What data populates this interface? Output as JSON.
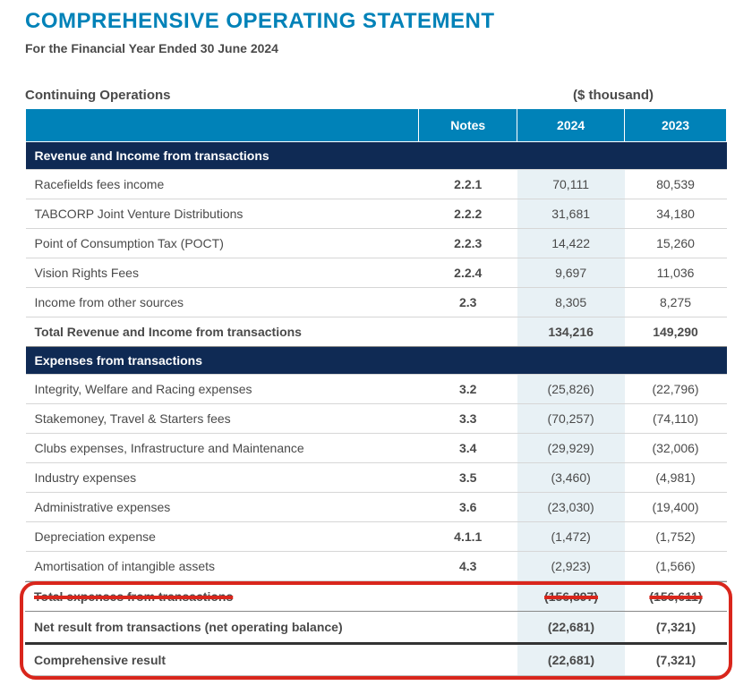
{
  "title": "COMPREHENSIVE OPERATING STATEMENT",
  "subtitle": "For the Financial Year Ended 30 June 2024",
  "continuing_label": "Continuing Operations",
  "unit_label": "($ thousand)",
  "columns": {
    "notes": "Notes",
    "y2024": "2024",
    "y2023": "2023"
  },
  "section_revenue": "Revenue and Income from transactions",
  "section_expenses": "Expenses from transactions",
  "rows_revenue": [
    {
      "label": "Racefields fees income",
      "notes": "2.2.1",
      "y2024": "70,111",
      "y2023": "80,539"
    },
    {
      "label": "TABCORP Joint Venture Distributions",
      "notes": "2.2.2",
      "y2024": "31,681",
      "y2023": "34,180"
    },
    {
      "label": "Point of Consumption Tax (POCT)",
      "notes": "2.2.3",
      "y2024": "14,422",
      "y2023": "15,260"
    },
    {
      "label": "Vision Rights Fees",
      "notes": "2.2.4",
      "y2024": "9,697",
      "y2023": "11,036"
    },
    {
      "label": "Income from other sources",
      "notes": "2.3",
      "y2024": "8,305",
      "y2023": "8,275"
    }
  ],
  "total_revenue": {
    "label": "Total Revenue and Income from transactions",
    "y2024": "134,216",
    "y2023": "149,290"
  },
  "rows_expenses": [
    {
      "label": "Integrity, Welfare and Racing expenses",
      "notes": "3.2",
      "y2024": "(25,826)",
      "y2023": "(22,796)"
    },
    {
      "label": "Stakemoney, Travel & Starters fees",
      "notes": "3.3",
      "y2024": "(70,257)",
      "y2023": "(74,110)"
    },
    {
      "label": "Clubs expenses, Infrastructure and Maintenance",
      "notes": "3.4",
      "y2024": "(29,929)",
      "y2023": "(32,006)"
    },
    {
      "label": "Industry expenses",
      "notes": "3.5",
      "y2024": "(3,460)",
      "y2023": "(4,981)"
    },
    {
      "label": "Administrative expenses",
      "notes": "3.6",
      "y2024": "(23,030)",
      "y2023": "(19,400)"
    },
    {
      "label": "Depreciation expense",
      "notes": "4.1.1",
      "y2024": "(1,472)",
      "y2023": "(1,752)"
    },
    {
      "label": "Amortisation of intangible assets",
      "notes": "4.3",
      "y2024": "(2,923)",
      "y2023": "(1,566)"
    }
  ],
  "total_expenses_obscured": {
    "label": "Total expenses from transactions",
    "y2024": "(156,897)",
    "y2023": "(156,611)"
  },
  "net_result": {
    "label": "Net result from transactions (net operating balance)",
    "y2024": "(22,681)",
    "y2023": "(7,321)"
  },
  "comprehensive": {
    "label": "Comprehensive result",
    "y2024": "(22,681)",
    "y2023": "(7,321)"
  },
  "colors": {
    "title": "#0082b8",
    "header_bg": "#0082b8",
    "section_bg": "#0f2a54",
    "col2024_bg": "#e8f1f5",
    "highlight_border": "#d9261c",
    "text": "#4a4a4a",
    "row_border": "#d6d6d6"
  }
}
